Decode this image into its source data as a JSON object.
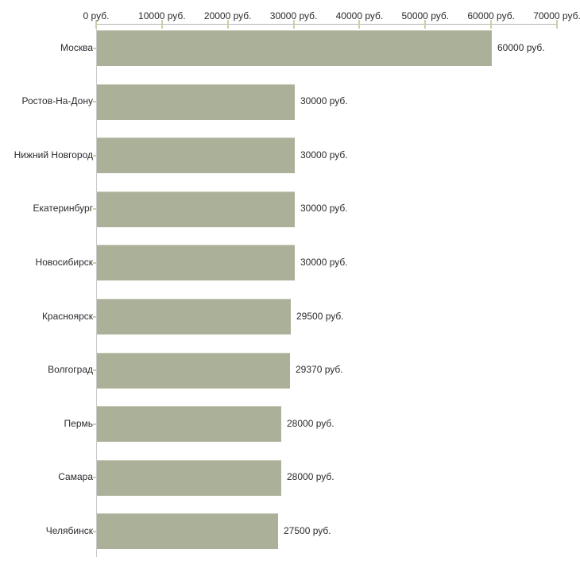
{
  "chart_data": {
    "type": "bar",
    "orientation": "horizontal",
    "title": "",
    "xlabel": "",
    "ylabel": "",
    "unit": "руб.",
    "categories": [
      "Москва",
      "Ростов-На-Дону",
      "Нижний Новгород",
      "Екатеринбург",
      "Новосибирск",
      "Красноярск",
      "Волгоград",
      "Пермь",
      "Самара",
      "Челябинск"
    ],
    "values": [
      60000,
      30000,
      30000,
      30000,
      30000,
      29500,
      29370,
      28000,
      28000,
      27500
    ],
    "value_labels": [
      "60000 руб.",
      "30000 руб.",
      "30000 руб.",
      "30000 руб.",
      "30000 руб.",
      "29500 руб.",
      "29370 руб.",
      "28000 руб.",
      "28000 руб.",
      "27500 руб."
    ],
    "x_ticks": [
      0,
      10000,
      20000,
      30000,
      40000,
      50000,
      60000,
      70000
    ],
    "x_tick_labels": [
      "0 руб.",
      "10000 руб.",
      "20000 руб.",
      "30000 руб.",
      "40000 руб.",
      "50000 руб.",
      "60000 руб.",
      "70000 руб."
    ],
    "xlim": [
      0,
      70000
    ],
    "grid": false,
    "legend": false,
    "colors": {
      "bar": "#abb199",
      "bar_top_edge": "#c7cbb8",
      "x_axis_line": "#b3b3b3",
      "y_axis_line": "#c9c9c9",
      "tick_mark": "#cdcfa6",
      "text": "#2b2b2b",
      "background": "#ffffff"
    }
  }
}
